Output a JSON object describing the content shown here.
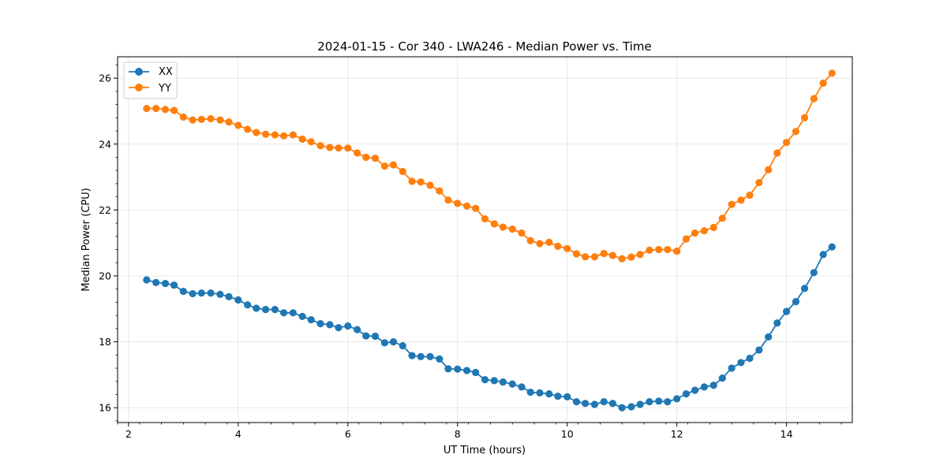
{
  "chart_data": {
    "type": "line",
    "title": "2024-01-15 - Cor 340 - LWA246 - Median Power vs. Time",
    "xlabel": "UT Time (hours)",
    "ylabel": "Median Power (CPU)",
    "xlim": [
      1.8,
      15.2
    ],
    "ylim": [
      15.55,
      26.65
    ],
    "xticks": [
      2,
      4,
      6,
      8,
      10,
      12,
      14
    ],
    "yticks": [
      16,
      18,
      20,
      22,
      24,
      26
    ],
    "grid": true,
    "legend_position": "top-left",
    "series": [
      {
        "name": "XX",
        "color": "#1f77b4",
        "x": [
          2.33,
          2.5,
          2.67,
          2.83,
          3.0,
          3.17,
          3.33,
          3.5,
          3.67,
          3.83,
          4.0,
          4.17,
          4.33,
          4.5,
          4.67,
          4.83,
          5.0,
          5.17,
          5.33,
          5.5,
          5.67,
          5.83,
          6.0,
          6.17,
          6.33,
          6.5,
          6.67,
          6.83,
          7.0,
          7.17,
          7.33,
          7.5,
          7.67,
          7.83,
          8.0,
          8.17,
          8.33,
          8.5,
          8.67,
          8.83,
          9.0,
          9.17,
          9.33,
          9.5,
          9.67,
          9.83,
          10.0,
          10.17,
          10.33,
          10.5,
          10.67,
          10.83,
          11.0,
          11.17,
          11.33,
          11.5,
          11.67,
          11.83,
          12.0,
          12.17,
          12.33,
          12.5,
          12.67,
          12.83,
          13.0,
          13.17,
          13.33,
          13.5,
          13.67,
          13.83,
          14.0,
          14.17,
          14.33,
          14.5,
          14.67,
          14.83
        ],
        "values": [
          19.88,
          19.8,
          19.77,
          19.72,
          19.53,
          19.46,
          19.48,
          19.48,
          19.44,
          19.37,
          19.27,
          19.12,
          19.02,
          18.98,
          18.98,
          18.88,
          18.88,
          18.77,
          18.67,
          18.55,
          18.52,
          18.43,
          18.48,
          18.37,
          18.18,
          18.17,
          17.97,
          18.0,
          17.88,
          17.58,
          17.55,
          17.55,
          17.48,
          17.18,
          17.17,
          17.13,
          17.07,
          16.85,
          16.82,
          16.78,
          16.72,
          16.63,
          16.47,
          16.45,
          16.42,
          16.35,
          16.33,
          16.18,
          16.13,
          16.1,
          16.18,
          16.13,
          16.0,
          16.03,
          16.1,
          16.18,
          16.2,
          16.18,
          16.27,
          16.42,
          16.53,
          16.63,
          16.68,
          16.9,
          17.2,
          17.37,
          17.5,
          17.75,
          18.15,
          18.57,
          18.92,
          19.22,
          19.62,
          20.1,
          20.65,
          20.88
        ]
      },
      {
        "name": "YY",
        "color": "#ff7f0e",
        "x": [
          2.33,
          2.5,
          2.67,
          2.83,
          3.0,
          3.17,
          3.33,
          3.5,
          3.67,
          3.83,
          4.0,
          4.17,
          4.33,
          4.5,
          4.67,
          4.83,
          5.0,
          5.17,
          5.33,
          5.5,
          5.67,
          5.83,
          6.0,
          6.17,
          6.33,
          6.5,
          6.67,
          6.83,
          7.0,
          7.17,
          7.33,
          7.5,
          7.67,
          7.83,
          8.0,
          8.17,
          8.33,
          8.5,
          8.67,
          8.83,
          9.0,
          9.17,
          9.33,
          9.5,
          9.67,
          9.83,
          10.0,
          10.17,
          10.33,
          10.5,
          10.67,
          10.83,
          11.0,
          11.17,
          11.33,
          11.5,
          11.67,
          11.83,
          12.0,
          12.17,
          12.33,
          12.5,
          12.67,
          12.83,
          13.0,
          13.17,
          13.33,
          13.5,
          13.67,
          13.83,
          14.0,
          14.17,
          14.33,
          14.5,
          14.67,
          14.83
        ],
        "values": [
          25.08,
          25.08,
          25.05,
          25.02,
          24.82,
          24.73,
          24.75,
          24.77,
          24.73,
          24.67,
          24.57,
          24.45,
          24.35,
          24.3,
          24.28,
          24.25,
          24.28,
          24.15,
          24.07,
          23.95,
          23.9,
          23.88,
          23.88,
          23.73,
          23.6,
          23.57,
          23.33,
          23.37,
          23.17,
          22.87,
          22.85,
          22.75,
          22.58,
          22.3,
          22.2,
          22.12,
          22.05,
          21.73,
          21.58,
          21.48,
          21.42,
          21.3,
          21.07,
          20.98,
          21.02,
          20.9,
          20.83,
          20.67,
          20.58,
          20.58,
          20.68,
          20.62,
          20.52,
          20.57,
          20.65,
          20.78,
          20.8,
          20.8,
          20.75,
          21.12,
          21.3,
          21.37,
          21.47,
          21.75,
          22.17,
          22.3,
          22.45,
          22.83,
          23.22,
          23.73,
          24.05,
          24.38,
          24.8,
          25.38,
          25.85,
          26.15
        ]
      }
    ]
  }
}
